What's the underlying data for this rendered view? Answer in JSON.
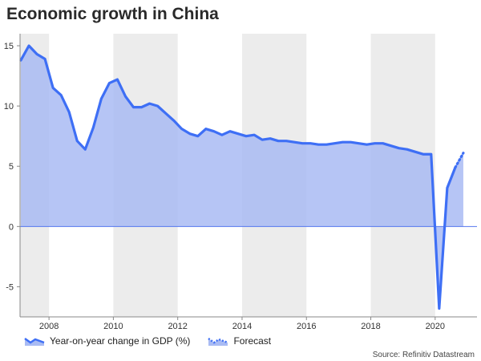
{
  "title": "Economic growth in China",
  "source": "Source: Refinitiv Datastream",
  "colors": {
    "line": "#3e6ff5",
    "fill": "#a9bbf3",
    "band": "#ececec",
    "zero_line": "#5577ee"
  },
  "chart_data": {
    "type": "area",
    "title": "Economic growth in China",
    "xlabel": "",
    "ylabel": "",
    "xlim": [
      2007.1,
      2021.3
    ],
    "ylim": [
      -7.5,
      16
    ],
    "y_ticks": [
      15,
      10,
      5,
      0,
      -5
    ],
    "x_ticks": [
      2008,
      2010,
      2012,
      2014,
      2016,
      2018,
      2020
    ],
    "shaded_bands": [
      [
        2007.1,
        2008.0
      ],
      [
        2010.0,
        2012.0
      ],
      [
        2014.0,
        2016.0
      ],
      [
        2018.0,
        2020.0
      ]
    ],
    "grid": false,
    "legend_position": "bottom-left",
    "series": [
      {
        "name": "Year-on-year change in GDP (%)",
        "style": "solid",
        "x": [
          2007.125,
          2007.375,
          2007.625,
          2007.875,
          2008.125,
          2008.375,
          2008.625,
          2008.875,
          2009.125,
          2009.375,
          2009.625,
          2009.875,
          2010.125,
          2010.375,
          2010.625,
          2010.875,
          2011.125,
          2011.375,
          2011.625,
          2011.875,
          2012.125,
          2012.375,
          2012.625,
          2012.875,
          2013.125,
          2013.375,
          2013.625,
          2013.875,
          2014.125,
          2014.375,
          2014.625,
          2014.875,
          2015.125,
          2015.375,
          2015.625,
          2015.875,
          2016.125,
          2016.375,
          2016.625,
          2016.875,
          2017.125,
          2017.375,
          2017.625,
          2017.875,
          2018.125,
          2018.375,
          2018.625,
          2018.875,
          2019.125,
          2019.375,
          2019.625,
          2019.875,
          2020.125,
          2020.375,
          2020.625
        ],
        "y": [
          13.8,
          15.0,
          14.3,
          13.9,
          11.5,
          10.9,
          9.5,
          7.1,
          6.4,
          8.2,
          10.6,
          11.9,
          12.2,
          10.8,
          9.9,
          9.9,
          10.2,
          10.0,
          9.4,
          8.8,
          8.1,
          7.7,
          7.5,
          8.1,
          7.9,
          7.6,
          7.9,
          7.7,
          7.5,
          7.6,
          7.2,
          7.3,
          7.1,
          7.1,
          7.0,
          6.9,
          6.9,
          6.8,
          6.8,
          6.9,
          7.0,
          7.0,
          6.9,
          6.8,
          6.9,
          6.9,
          6.7,
          6.5,
          6.4,
          6.2,
          6.0,
          6.0,
          -6.8,
          3.2,
          4.9
        ]
      },
      {
        "name": "Forecast",
        "style": "dotted",
        "x": [
          2020.625,
          2020.875
        ],
        "y": [
          4.9,
          6.1
        ]
      }
    ]
  }
}
